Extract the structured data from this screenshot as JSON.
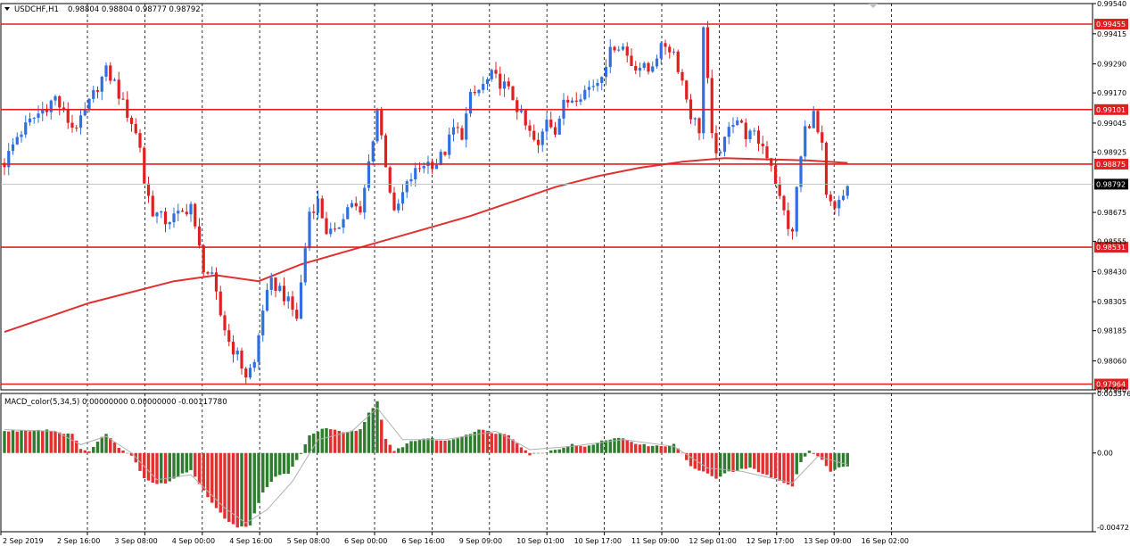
{
  "header": {
    "symbol_timeframe": "USDCHF,H1",
    "ohlc": "0.98804 0.98804 0.98777 0.98792",
    "dropdown_icon": "triangle-down-icon"
  },
  "macd_header": "MACD_color(5,34,5) 0.00000000 0.00000000 -0.00117780",
  "colors": {
    "bull": "#2f6fe0",
    "bear": "#e02020",
    "ma": "#e03030",
    "level": "#e02020",
    "macd_up": "#2e7d2e",
    "macd_down": "#e03030",
    "signal": "#b0b0b0",
    "current": "#000000"
  },
  "chart_data": [
    {
      "type": "candlestick",
      "symbol": "USDCHF",
      "timeframe": "H1",
      "ylim": [
        0.9794,
        0.9954
      ],
      "y_ticks": [
        "0.99540",
        "0.99415",
        "0.99290",
        "0.99170",
        "0.99045",
        "0.98925",
        "0.98675",
        "0.98555",
        "0.98430",
        "0.98305",
        "0.98185",
        "0.98060",
        "0.97940"
      ],
      "x_ticks": [
        "2 Sep 2019",
        "2 Sep 16:00",
        "3 Sep 08:00",
        "4 Sep 00:00",
        "4 Sep 16:00",
        "5 Sep 08:00",
        "6 Sep 00:00",
        "6 Sep 16:00",
        "9 Sep 09:00",
        "10 Sep 01:00",
        "10 Sep 17:00",
        "11 Sep 09:00",
        "12 Sep 01:00",
        "12 Sep 17:00",
        "13 Sep 09:00",
        "16 Sep 02:00"
      ],
      "horizontal_levels": [
        {
          "value": 0.99455,
          "label": "0.99455"
        },
        {
          "value": 0.99101,
          "label": "0.99101"
        },
        {
          "value": 0.98875,
          "label": "0.98875"
        },
        {
          "value": 0.98531,
          "label": "0.98531"
        },
        {
          "value": 0.97964,
          "label": "0.97964"
        }
      ],
      "current_price": {
        "value": 0.98792,
        "label": "0.98792"
      },
      "price_path": [
        [
          0,
          0.9888
        ],
        [
          3,
          0.9899
        ],
        [
          6,
          0.9905
        ],
        [
          9,
          0.991
        ],
        [
          12,
          0.9915
        ],
        [
          14,
          0.9908
        ],
        [
          16,
          0.9903
        ],
        [
          18,
          0.9905
        ],
        [
          22,
          0.992
        ],
        [
          24,
          0.9926
        ],
        [
          26,
          0.9921
        ],
        [
          28,
          0.9912
        ],
        [
          30,
          0.9905
        ],
        [
          32,
          0.9895
        ],
        [
          33,
          0.988
        ],
        [
          35,
          0.9868
        ],
        [
          38,
          0.9864
        ],
        [
          42,
          0.9867
        ],
        [
          44,
          0.9871
        ],
        [
          45,
          0.986
        ],
        [
          47,
          0.9845
        ],
        [
          49,
          0.984
        ],
        [
          51,
          0.9825
        ],
        [
          53,
          0.9814
        ],
        [
          55,
          0.9808
        ],
        [
          57,
          0.98
        ],
        [
          59,
          0.9805
        ],
        [
          61,
          0.9828
        ],
        [
          63,
          0.9838
        ],
        [
          65,
          0.9836
        ],
        [
          67,
          0.983
        ],
        [
          69,
          0.9824
        ],
        [
          70,
          0.9838
        ],
        [
          72,
          0.9868
        ],
        [
          74,
          0.9872
        ],
        [
          76,
          0.986
        ],
        [
          78,
          0.9858
        ],
        [
          80,
          0.9867
        ],
        [
          82,
          0.9872
        ],
        [
          84,
          0.9866
        ],
        [
          86,
          0.9888
        ],
        [
          88,
          0.991
        ],
        [
          90,
          0.9888
        ],
        [
          92,
          0.9866
        ],
        [
          94,
          0.9875
        ],
        [
          96,
          0.9882
        ],
        [
          99,
          0.9888
        ],
        [
          102,
          0.9888
        ],
        [
          104,
          0.9893
        ],
        [
          106,
          0.9902
        ],
        [
          108,
          0.99
        ],
        [
          110,
          0.9915
        ],
        [
          112,
          0.9918
        ],
        [
          115,
          0.9924
        ],
        [
          118,
          0.992
        ],
        [
          120,
          0.9915
        ],
        [
          123,
          0.9903
        ],
        [
          126,
          0.9894
        ],
        [
          128,
          0.9907
        ],
        [
          130,
          0.9902
        ],
        [
          132,
          0.9912
        ],
        [
          134,
          0.9915
        ],
        [
          137,
          0.9918
        ],
        [
          140,
          0.9922
        ],
        [
          142,
          0.993
        ],
        [
          144,
          0.9937
        ],
        [
          146,
          0.9936
        ],
        [
          148,
          0.9929
        ],
        [
          150,
          0.9928
        ],
        [
          152,
          0.9926
        ],
        [
          154,
          0.9933
        ],
        [
          156,
          0.9937
        ],
        [
          158,
          0.9934
        ],
        [
          160,
          0.9922
        ],
        [
          162,
          0.9908
        ],
        [
          164,
          0.9902
        ],
        [
          165,
          0.9944
        ],
        [
          167,
          0.9898
        ],
        [
          169,
          0.989
        ],
        [
          171,
          0.9905
        ],
        [
          173,
          0.9906
        ],
        [
          175,
          0.99
        ],
        [
          177,
          0.9899
        ],
        [
          179,
          0.9895
        ],
        [
          181,
          0.9888
        ],
        [
          183,
          0.9873
        ],
        [
          185,
          0.9862
        ],
        [
          186,
          0.9858
        ],
        [
          187,
          0.9878
        ],
        [
          189,
          0.9902
        ],
        [
          191,
          0.9908
        ],
        [
          192,
          0.99
        ],
        [
          193,
          0.9894
        ],
        [
          194,
          0.9873
        ],
        [
          196,
          0.9868
        ],
        [
          198,
          0.9874
        ],
        [
          199,
          0.9879
        ]
      ],
      "moving_average": [
        [
          0,
          0.9818
        ],
        [
          20,
          0.983
        ],
        [
          40,
          0.9839
        ],
        [
          50,
          0.98415
        ],
        [
          60,
          0.9839
        ],
        [
          70,
          0.9846
        ],
        [
          80,
          0.9851
        ],
        [
          90,
          0.9856
        ],
        [
          100,
          0.9861
        ],
        [
          110,
          0.9866
        ],
        [
          120,
          0.9872
        ],
        [
          130,
          0.9878
        ],
        [
          140,
          0.98825
        ],
        [
          150,
          0.9886
        ],
        [
          160,
          0.98885
        ],
        [
          170,
          0.989
        ],
        [
          180,
          0.98895
        ],
        [
          190,
          0.9889
        ],
        [
          199,
          0.9888
        ]
      ]
    },
    {
      "type": "bar",
      "name": "MACD_color(5,34,5)",
      "ylim": [
        -0.00472,
        0.00357
      ],
      "y_ticks": [
        "0.003576",
        "0.00",
        "-0.00472"
      ],
      "histogram_path": [
        [
          0,
          0.0013
        ],
        [
          10,
          0.0014
        ],
        [
          16,
          0.0011
        ],
        [
          18,
          0.0003
        ],
        [
          20,
          0.0001
        ],
        [
          24,
          0.0012
        ],
        [
          27,
          0.0003
        ],
        [
          30,
          -0.0001
        ],
        [
          33,
          -0.0015
        ],
        [
          35,
          -0.0018
        ],
        [
          38,
          -0.0018
        ],
        [
          41,
          -0.0014
        ],
        [
          44,
          -0.001
        ],
        [
          47,
          -0.0023
        ],
        [
          52,
          -0.0039
        ],
        [
          55,
          -0.0045
        ],
        [
          58,
          -0.0043
        ],
        [
          61,
          -0.0024
        ],
        [
          64,
          -0.0014
        ],
        [
          67,
          -0.0012
        ],
        [
          70,
          -0.0001
        ],
        [
          72,
          0.0011
        ],
        [
          76,
          0.0015
        ],
        [
          80,
          0.0012
        ],
        [
          84,
          0.0014
        ],
        [
          86,
          0.0024
        ],
        [
          88,
          0.0031
        ],
        [
          90,
          0.0008
        ],
        [
          92,
          0.0001
        ],
        [
          96,
          0.0007
        ],
        [
          100,
          0.0009
        ],
        [
          104,
          0.0007
        ],
        [
          108,
          0.001
        ],
        [
          112,
          0.0014
        ],
        [
          116,
          0.0012
        ],
        [
          119,
          0.0011
        ],
        [
          122,
          0.0004
        ],
        [
          124,
          -0.0001
        ],
        [
          127,
          0.0
        ],
        [
          130,
          0.0002
        ],
        [
          134,
          0.0005
        ],
        [
          138,
          0.0004
        ],
        [
          142,
          0.0008
        ],
        [
          146,
          0.0009
        ],
        [
          150,
          0.0005
        ],
        [
          154,
          0.0004
        ],
        [
          158,
          0.0005
        ],
        [
          160,
          0.0
        ],
        [
          162,
          -0.0008
        ],
        [
          164,
          -0.0011
        ],
        [
          166,
          -0.0012
        ],
        [
          168,
          -0.0016
        ],
        [
          170,
          -0.0012
        ],
        [
          172,
          -0.0011
        ],
        [
          176,
          -0.0009
        ],
        [
          180,
          -0.0013
        ],
        [
          184,
          -0.0018
        ],
        [
          186,
          -0.002
        ],
        [
          188,
          -0.0006
        ],
        [
          190,
          0.0002
        ],
        [
          193,
          -0.0004
        ],
        [
          195,
          -0.0011
        ],
        [
          197,
          -0.0009
        ],
        [
          199,
          -0.0008
        ]
      ],
      "signal_path": [
        [
          0,
          0.0014
        ],
        [
          12,
          0.0013
        ],
        [
          18,
          0.0005
        ],
        [
          24,
          0.001
        ],
        [
          30,
          0.0
        ],
        [
          36,
          -0.0016
        ],
        [
          44,
          -0.0013
        ],
        [
          52,
          -0.0033
        ],
        [
          57,
          -0.0042
        ],
        [
          62,
          -0.0034
        ],
        [
          68,
          -0.0017
        ],
        [
          74,
          0.0008
        ],
        [
          82,
          0.0013
        ],
        [
          88,
          0.0027
        ],
        [
          94,
          0.0008
        ],
        [
          104,
          0.0008
        ],
        [
          116,
          0.0013
        ],
        [
          124,
          0.0002
        ],
        [
          134,
          0.0004
        ],
        [
          146,
          0.0008
        ],
        [
          158,
          0.0004
        ],
        [
          166,
          -0.0009
        ],
        [
          174,
          -0.0011
        ],
        [
          186,
          -0.0018
        ],
        [
          192,
          -0.0002
        ],
        [
          199,
          -0.0007
        ]
      ]
    }
  ]
}
